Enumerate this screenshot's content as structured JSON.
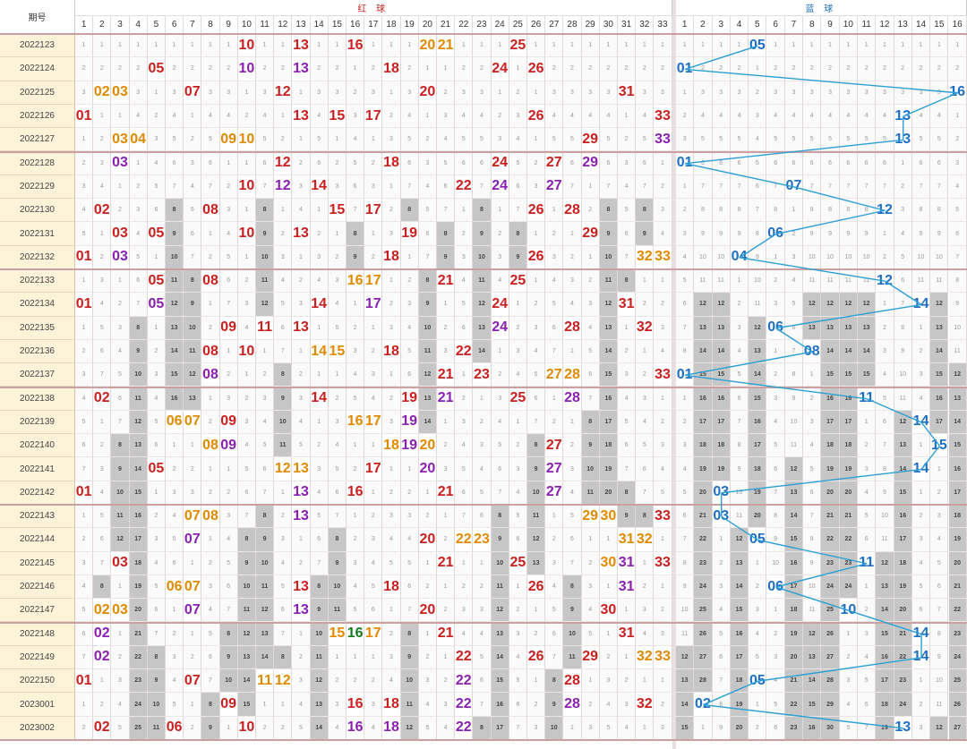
{
  "header": {
    "issue_label": "期号",
    "red_label": "红 球",
    "blue_label": "蓝 球"
  },
  "colors": {
    "red_hit": "#c9201f",
    "blue_hit": "#1e6fc4",
    "line": "#2b9fd4",
    "repeat": "#8a1fb0",
    "consec": "#e08a00",
    "triple": "#137a1f",
    "shade": "#c6c6c6"
  },
  "chart_data": {
    "type": "table",
    "red_range": [
      1,
      33
    ],
    "blue_range": [
      1,
      16
    ],
    "rows": [
      {
        "issue": "2022123",
        "red": [
          10,
          13,
          16,
          20,
          21,
          25
        ],
        "blue": 5
      },
      {
        "issue": "2022124",
        "red": [
          5,
          10,
          13,
          18,
          24,
          26
        ],
        "blue": 1
      },
      {
        "issue": "2022125",
        "red": [
          2,
          3,
          7,
          12,
          20,
          31
        ],
        "blue": 16
      },
      {
        "issue": "2022126",
        "red": [
          1,
          13,
          15,
          17,
          26,
          33
        ],
        "blue": 13
      },
      {
        "issue": "2022127",
        "red": [
          3,
          4,
          9,
          10,
          29,
          33
        ],
        "blue": 13
      },
      {
        "issue": "2022128",
        "red": [
          3,
          12,
          18,
          24,
          27,
          29
        ],
        "blue": 1
      },
      {
        "issue": "2022129",
        "red": [
          10,
          12,
          14,
          22,
          24,
          27
        ],
        "blue": 7
      },
      {
        "issue": "2022130",
        "red": [
          2,
          8,
          15,
          17,
          26,
          28
        ],
        "blue": 12
      },
      {
        "issue": "2022131",
        "red": [
          3,
          5,
          10,
          13,
          19,
          29
        ],
        "blue": 6
      },
      {
        "issue": "2022132",
        "red": [
          1,
          3,
          18,
          26,
          32,
          33
        ],
        "blue": 4
      },
      {
        "issue": "2022133",
        "red": [
          5,
          8,
          16,
          17,
          21,
          25
        ],
        "blue": 12
      },
      {
        "issue": "2022134",
        "red": [
          1,
          5,
          14,
          17,
          24,
          31
        ],
        "blue": 14
      },
      {
        "issue": "2022135",
        "red": [
          9,
          11,
          13,
          24,
          28,
          32
        ],
        "blue": 6
      },
      {
        "issue": "2022136",
        "red": [
          8,
          10,
          14,
          15,
          18,
          22
        ],
        "blue": 8
      },
      {
        "issue": "2022137",
        "red": [
          8,
          21,
          23,
          27,
          28,
          33
        ],
        "blue": 1
      },
      {
        "issue": "2022138",
        "red": [
          2,
          14,
          19,
          21,
          25,
          28
        ],
        "blue": 11
      },
      {
        "issue": "2022139",
        "red": [
          6,
          7,
          9,
          16,
          17,
          19
        ],
        "blue": 14
      },
      {
        "issue": "2022140",
        "red": [
          8,
          9,
          18,
          19,
          20,
          27
        ],
        "blue": 15
      },
      {
        "issue": "2022141",
        "red": [
          5,
          12,
          13,
          17,
          20,
          27
        ],
        "blue": 14
      },
      {
        "issue": "2022142",
        "red": [
          1,
          13,
          16,
          21,
          27
        ],
        "blue": 3
      },
      {
        "issue": "2022143",
        "red": [
          7,
          8,
          13,
          29,
          30,
          33
        ],
        "blue": 3
      },
      {
        "issue": "2022144",
        "red": [
          7,
          20,
          22,
          23,
          31,
          32
        ],
        "blue": 5
      },
      {
        "issue": "2022145",
        "red": [
          3,
          21,
          25,
          30,
          31,
          33
        ],
        "blue": 11
      },
      {
        "issue": "2022146",
        "red": [
          6,
          7,
          13,
          18,
          26,
          31
        ],
        "blue": 6
      },
      {
        "issue": "2022147",
        "red": [
          2,
          3,
          7,
          13,
          20,
          30
        ],
        "blue": 10
      },
      {
        "issue": "2022148",
        "red": [
          2,
          15,
          16,
          17,
          21,
          31
        ],
        "blue": 14
      },
      {
        "issue": "2022149",
        "red": [
          2,
          22,
          26,
          29,
          32,
          33
        ],
        "blue": 14
      },
      {
        "issue": "2022150",
        "red": [
          1,
          7,
          11,
          12,
          22,
          28
        ],
        "blue": 5
      },
      {
        "issue": "2023001",
        "red": [
          9,
          16,
          18,
          22,
          28,
          32
        ],
        "blue": 2
      },
      {
        "issue": "2023002",
        "red": [
          2,
          6,
          10,
          16,
          18,
          22
        ],
        "blue": 13
      }
    ]
  }
}
